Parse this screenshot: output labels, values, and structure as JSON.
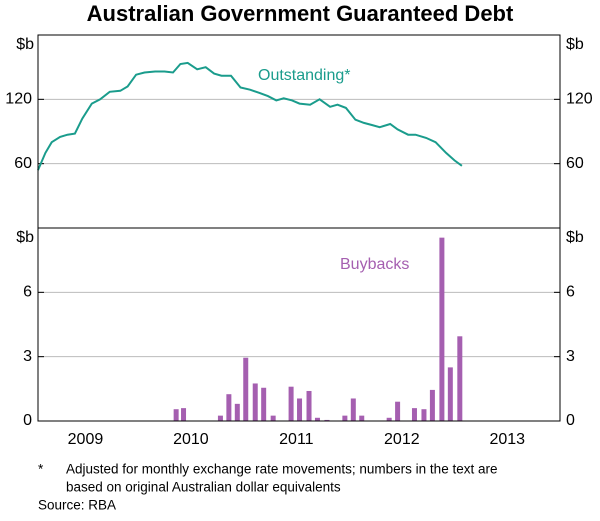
{
  "title": "Australian Government Guaranteed Debt",
  "chart_data": [
    {
      "type": "line",
      "annotation": "Outstanding*",
      "y_label": "$b",
      "color": "#1a9c8c",
      "xlim": [
        2009.05,
        2014
      ],
      "ylim": [
        0,
        180
      ],
      "yticks": [
        60,
        120
      ],
      "grid": true,
      "x": [
        2009.05,
        2009.12,
        2009.18,
        2009.26,
        2009.33,
        2009.4,
        2009.47,
        2009.56,
        2009.64,
        2009.73,
        2009.83,
        2009.9,
        2009.98,
        2010.06,
        2010.16,
        2010.25,
        2010.33,
        2010.4,
        2010.47,
        2010.56,
        2010.64,
        2010.72,
        2010.79,
        2010.88,
        2010.97,
        2011.06,
        2011.15,
        2011.23,
        2011.31,
        2011.38,
        2011.46,
        2011.53,
        2011.63,
        2011.72,
        2011.82,
        2011.89,
        2011.97,
        2012.06,
        2012.14,
        2012.22,
        2012.29,
        2012.39,
        2012.46,
        2012.56,
        2012.63,
        2012.73,
        2012.82,
        2012.92,
        2013.0,
        2013.07
      ],
      "values": [
        54,
        70,
        80,
        85,
        87,
        88,
        102,
        116,
        120,
        127,
        128,
        132,
        143,
        145,
        146,
        146,
        145,
        153,
        154,
        148,
        150,
        144,
        142,
        142,
        131,
        129,
        126,
        123,
        119,
        121,
        119,
        116,
        115,
        120,
        113,
        115,
        112,
        101,
        98,
        96,
        94,
        97,
        92,
        87,
        87,
        84,
        80,
        70,
        63,
        58
      ]
    },
    {
      "type": "bar",
      "annotation": "Buybacks",
      "y_label": "$b",
      "color": "#a55fb0",
      "xlim": [
        2009.05,
        2014
      ],
      "ylim": [
        0,
        9
      ],
      "yticks": [
        0,
        3,
        6
      ],
      "grid": true,
      "xticks": [
        {
          "value": 2009.5,
          "label": "2009"
        },
        {
          "value": 2010.5,
          "label": "2010"
        },
        {
          "value": 2011.5,
          "label": "2011"
        },
        {
          "value": 2012.5,
          "label": "2012"
        },
        {
          "value": 2013.5,
          "label": "2013"
        }
      ],
      "x": [
        2010.36,
        2010.43,
        2010.78,
        2010.86,
        2010.94,
        2011.02,
        2011.11,
        2011.19,
        2011.28,
        2011.45,
        2011.53,
        2011.62,
        2011.7,
        2011.79,
        2011.96,
        2012.04,
        2012.12,
        2012.38,
        2012.46,
        2012.62,
        2012.71,
        2012.79,
        2012.88,
        2012.96,
        2013.05
      ],
      "values": [
        0.55,
        0.6,
        0.25,
        1.25,
        0.8,
        2.95,
        1.75,
        1.55,
        0.25,
        1.6,
        1.05,
        1.4,
        0.15,
        0.05,
        0.25,
        1.05,
        0.25,
        0.15,
        0.9,
        0.6,
        0.55,
        1.45,
        8.55,
        2.5,
        3.95
      ]
    }
  ],
  "notes": [
    "*",
    "Adjusted for monthly exchange rate movements; numbers in the text are",
    "based on original Australian dollar equivalents"
  ],
  "source": "Source: RBA"
}
